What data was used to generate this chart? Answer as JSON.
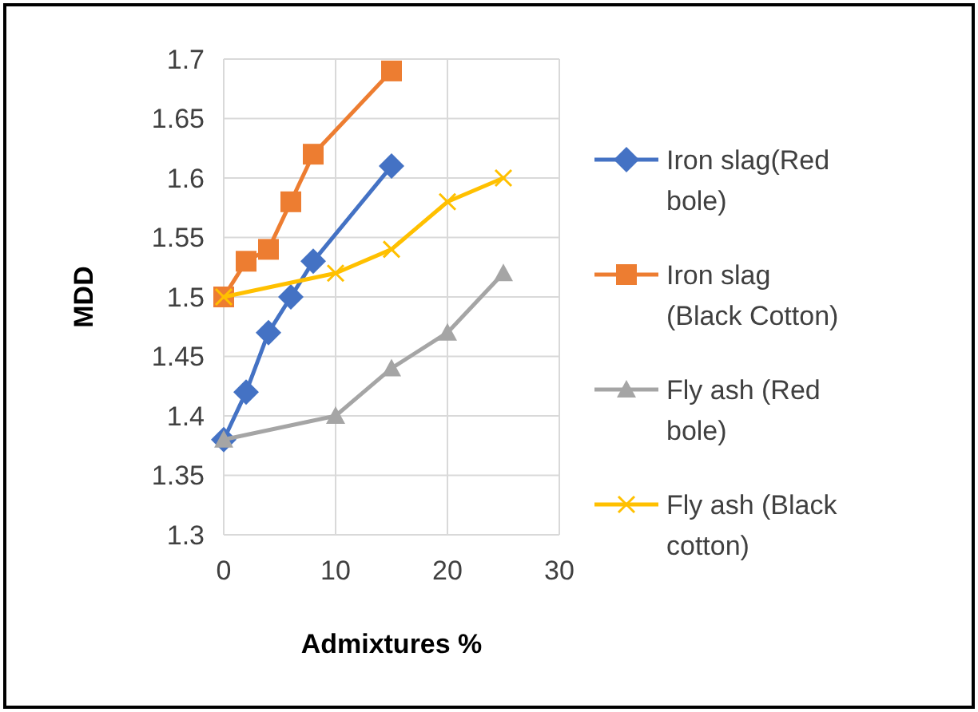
{
  "chart_data": {
    "type": "line",
    "xlabel": "Admixtures %",
    "ylabel": "MDD",
    "xlim": [
      0,
      30
    ],
    "xticks": [
      0,
      10,
      20,
      30
    ],
    "ylim": [
      1.3,
      1.7
    ],
    "yticks": [
      1.3,
      1.35,
      1.4,
      1.45,
      1.5,
      1.55,
      1.6,
      1.65,
      1.7
    ],
    "grid": true,
    "legend": "right",
    "series": [
      {
        "name": "Iron slag(Red bole)",
        "color": "#4472c4",
        "marker": "diamond",
        "x": [
          0,
          2,
          4,
          6,
          8,
          15
        ],
        "values": [
          1.38,
          1.42,
          1.47,
          1.5,
          1.53,
          1.61
        ]
      },
      {
        "name": "Iron slag (Black Cotton)",
        "color": "#ed7d31",
        "marker": "square",
        "x": [
          0,
          2,
          4,
          6,
          8,
          15
        ],
        "values": [
          1.5,
          1.53,
          1.54,
          1.58,
          1.62,
          1.69
        ]
      },
      {
        "name": "Fly ash (Red bole)",
        "color": "#a5a5a5",
        "marker": "triangle",
        "x": [
          0,
          10,
          15,
          20,
          25
        ],
        "values": [
          1.38,
          1.4,
          1.44,
          1.47,
          1.52
        ]
      },
      {
        "name": "Fly ash (Black cotton)",
        "color": "#ffc000",
        "marker": "cross",
        "x": [
          0,
          10,
          15,
          20,
          25
        ],
        "values": [
          1.5,
          1.52,
          1.54,
          1.58,
          1.6
        ]
      }
    ]
  }
}
